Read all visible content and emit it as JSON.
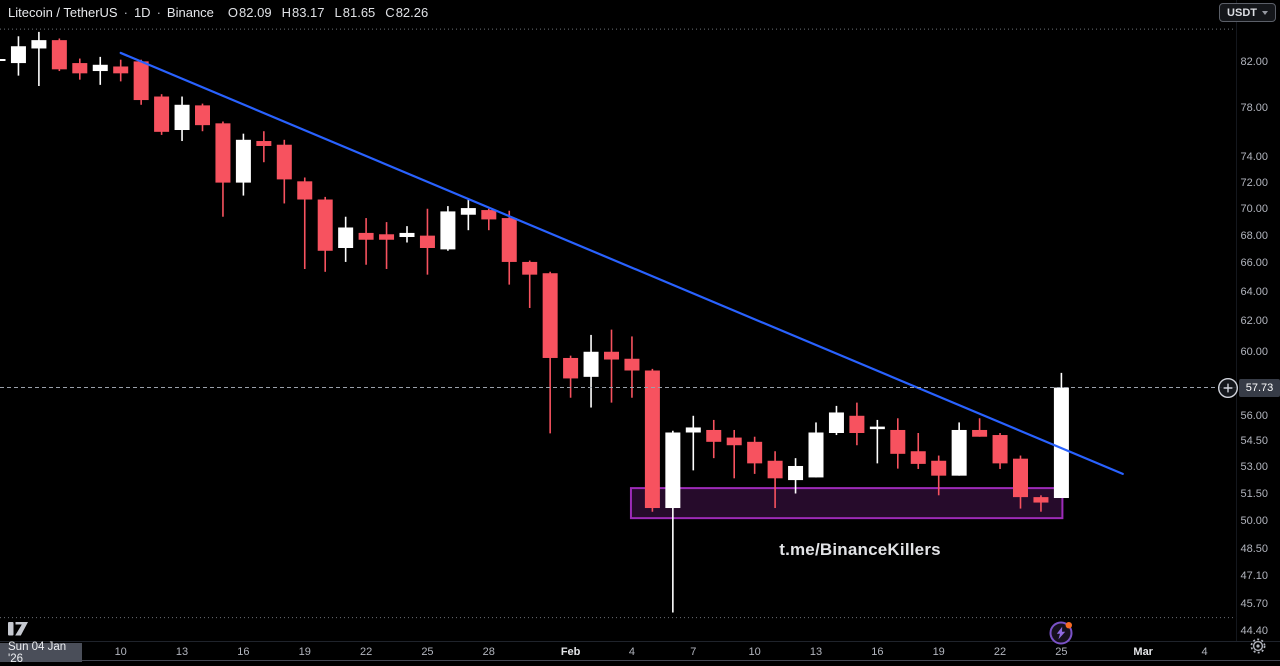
{
  "header": {
    "symbol": "Litecoin / TetherUS",
    "sep": "·",
    "interval": "1D",
    "exchange": "Binance",
    "ohlc": [
      {
        "label": "O",
        "value": "82.09"
      },
      {
        "label": "H",
        "value": "83.17"
      },
      {
        "label": "L",
        "value": "81.65"
      },
      {
        "label": "C",
        "value": "82.26"
      }
    ]
  },
  "currency_button": {
    "label": "USDT"
  },
  "price_axis": {
    "current": {
      "label": "57.73",
      "value": 57.73
    },
    "ticks": [
      {
        "label": "82.00",
        "value": 82.0
      },
      {
        "label": "78.00",
        "value": 78.0
      },
      {
        "label": "74.00",
        "value": 74.0
      },
      {
        "label": "72.00",
        "value": 72.0
      },
      {
        "label": "70.00",
        "value": 70.0
      },
      {
        "label": "68.00",
        "value": 68.0
      },
      {
        "label": "66.00",
        "value": 66.0
      },
      {
        "label": "64.00",
        "value": 64.0
      },
      {
        "label": "62.00",
        "value": 62.0
      },
      {
        "label": "60.00",
        "value": 60.0
      },
      {
        "label": "56.00",
        "value": 56.0
      },
      {
        "label": "54.50",
        "value": 54.5
      },
      {
        "label": "53.00",
        "value": 53.0
      },
      {
        "label": "51.50",
        "value": 51.5
      },
      {
        "label": "50.00",
        "value": 50.0
      },
      {
        "label": "48.50",
        "value": 48.5
      },
      {
        "label": "47.10",
        "value": 47.1
      },
      {
        "label": "45.70",
        "value": 45.7
      },
      {
        "label": "44.40",
        "value": 44.4
      }
    ]
  },
  "time_axis": {
    "date_badge": "Sun 04 Jan '26",
    "ticks": [
      {
        "label": "10",
        "day_index": 6,
        "bold": false
      },
      {
        "label": "13",
        "day_index": 9,
        "bold": false
      },
      {
        "label": "16",
        "day_index": 12,
        "bold": false
      },
      {
        "label": "19",
        "day_index": 15,
        "bold": false
      },
      {
        "label": "22",
        "day_index": 18,
        "bold": false
      },
      {
        "label": "25",
        "day_index": 21,
        "bold": false
      },
      {
        "label": "28",
        "day_index": 24,
        "bold": false
      },
      {
        "label": "Feb",
        "day_index": 28,
        "bold": true
      },
      {
        "label": "4",
        "day_index": 31,
        "bold": false
      },
      {
        "label": "7",
        "day_index": 34,
        "bold": false
      },
      {
        "label": "10",
        "day_index": 37,
        "bold": false
      },
      {
        "label": "13",
        "day_index": 40,
        "bold": false
      },
      {
        "label": "16",
        "day_index": 43,
        "bold": false
      },
      {
        "label": "19",
        "day_index": 46,
        "bold": false
      },
      {
        "label": "22",
        "day_index": 49,
        "bold": false
      },
      {
        "label": "25",
        "day_index": 52,
        "bold": false
      },
      {
        "label": "Mar",
        "day_index": 56,
        "bold": true
      },
      {
        "label": "4",
        "day_index": 59,
        "bold": false
      }
    ]
  },
  "colors": {
    "background": "#000000",
    "candle_up": "#ffffff",
    "candle_down": "#f7525f",
    "trendline": "#2962ff",
    "zone_border": "#9d2bb8",
    "zone_fill": "rgba(138,40,156,0.28)",
    "axis_text": "#b2b5be",
    "price_line": "#9aa0aa",
    "badge_bg": "#373c47",
    "flash_purple": "#8f6ae0",
    "notification_orange": "#f76a24"
  },
  "chart_data": {
    "type": "candlestick",
    "title": "Litecoin / TetherUS · 1D · Binance",
    "price_scale": "log",
    "current_price": 57.73,
    "dotted_guides_prices": [
      84.95,
      45.05
    ],
    "drawings": {
      "watermark_text": "t.me/BinanceKillers",
      "trendline": {
        "shape": "trend-line",
        "start": {
          "day_index": 6,
          "price": 82.8
        },
        "end": {
          "day_index": 55,
          "price": 52.6
        }
      },
      "support_zone": {
        "shape": "rectangle",
        "from_day_index": 31,
        "to_day_index": 52,
        "top_price": 51.8,
        "bottom_price": 50.15
      }
    },
    "candles": [
      {
        "date": "Jan 4",
        "o": 82.09,
        "h": 83.17,
        "l": 81.65,
        "c": 82.26
      },
      {
        "date": "Jan 5",
        "o": 81.9,
        "h": 84.3,
        "l": 80.8,
        "c": 83.4
      },
      {
        "date": "Jan 6",
        "o": 83.2,
        "h": 84.7,
        "l": 79.9,
        "c": 83.95
      },
      {
        "date": "Jan 7",
        "o": 83.95,
        "h": 84.1,
        "l": 81.2,
        "c": 81.35
      },
      {
        "date": "Jan 8",
        "o": 81.9,
        "h": 82.3,
        "l": 80.45,
        "c": 81.0
      },
      {
        "date": "Jan 9",
        "o": 81.2,
        "h": 82.45,
        "l": 80.0,
        "c": 81.75
      },
      {
        "date": "Jan 10",
        "o": 81.6,
        "h": 82.2,
        "l": 80.3,
        "c": 81.0
      },
      {
        "date": "Jan 11",
        "o": 82.05,
        "h": 82.2,
        "l": 78.3,
        "c": 78.7
      },
      {
        "date": "Jan 12",
        "o": 79.0,
        "h": 79.2,
        "l": 75.8,
        "c": 76.05
      },
      {
        "date": "Jan 13",
        "o": 76.2,
        "h": 79.0,
        "l": 75.3,
        "c": 78.3
      },
      {
        "date": "Jan 14",
        "o": 78.25,
        "h": 78.4,
        "l": 76.1,
        "c": 76.6
      },
      {
        "date": "Jan 15",
        "o": 76.75,
        "h": 76.9,
        "l": 69.4,
        "c": 72.0
      },
      {
        "date": "Jan 16",
        "o": 72.0,
        "h": 75.9,
        "l": 71.0,
        "c": 75.4
      },
      {
        "date": "Jan 17",
        "o": 75.3,
        "h": 76.1,
        "l": 73.6,
        "c": 74.9
      },
      {
        "date": "Jan 18",
        "o": 75.0,
        "h": 75.4,
        "l": 70.4,
        "c": 72.25
      },
      {
        "date": "Jan 19",
        "o": 72.1,
        "h": 72.4,
        "l": 65.6,
        "c": 70.7
      },
      {
        "date": "Jan 20",
        "o": 70.7,
        "h": 70.9,
        "l": 65.4,
        "c": 66.9
      },
      {
        "date": "Jan 21",
        "o": 67.1,
        "h": 69.4,
        "l": 66.1,
        "c": 68.6
      },
      {
        "date": "Jan 22",
        "o": 68.2,
        "h": 69.3,
        "l": 65.9,
        "c": 67.7
      },
      {
        "date": "Jan 23",
        "o": 68.1,
        "h": 69.0,
        "l": 65.6,
        "c": 67.7
      },
      {
        "date": "Jan 24",
        "o": 67.9,
        "h": 68.7,
        "l": 67.5,
        "c": 68.2
      },
      {
        "date": "Jan 25",
        "o": 68.0,
        "h": 70.0,
        "l": 65.2,
        "c": 67.1
      },
      {
        "date": "Jan 26",
        "o": 67.0,
        "h": 70.2,
        "l": 66.9,
        "c": 69.8
      },
      {
        "date": "Jan 27",
        "o": 69.55,
        "h": 70.7,
        "l": 68.4,
        "c": 70.05
      },
      {
        "date": "Jan 28",
        "o": 69.9,
        "h": 70.0,
        "l": 68.4,
        "c": 69.2
      },
      {
        "date": "Jan 29",
        "o": 69.3,
        "h": 69.85,
        "l": 64.5,
        "c": 66.1
      },
      {
        "date": "Jan 30",
        "o": 66.1,
        "h": 66.2,
        "l": 62.9,
        "c": 65.2
      },
      {
        "date": "Jan 31",
        "o": 65.3,
        "h": 65.4,
        "l": 54.95,
        "c": 59.6
      },
      {
        "date": "Feb 1",
        "o": 59.6,
        "h": 59.75,
        "l": 57.1,
        "c": 58.3
      },
      {
        "date": "Feb 2",
        "o": 58.4,
        "h": 61.1,
        "l": 56.5,
        "c": 60.0
      },
      {
        "date": "Feb 3",
        "o": 60.0,
        "h": 61.45,
        "l": 56.8,
        "c": 59.5
      },
      {
        "date": "Feb 4",
        "o": 59.55,
        "h": 61.0,
        "l": 57.1,
        "c": 58.8
      },
      {
        "date": "Feb 5",
        "o": 58.8,
        "h": 58.9,
        "l": 50.5,
        "c": 50.7
      },
      {
        "date": "Feb 6",
        "o": 50.7,
        "h": 55.1,
        "l": 45.3,
        "c": 55.0
      },
      {
        "date": "Feb 7",
        "o": 55.0,
        "h": 56.0,
        "l": 52.8,
        "c": 55.3
      },
      {
        "date": "Feb 8",
        "o": 55.15,
        "h": 55.75,
        "l": 53.5,
        "c": 54.45
      },
      {
        "date": "Feb 9",
        "o": 54.7,
        "h": 55.15,
        "l": 52.35,
        "c": 54.25
      },
      {
        "date": "Feb 10",
        "o": 54.45,
        "h": 54.75,
        "l": 52.6,
        "c": 53.2
      },
      {
        "date": "Feb 11",
        "o": 53.35,
        "h": 53.9,
        "l": 50.7,
        "c": 52.35
      },
      {
        "date": "Feb 12",
        "o": 52.25,
        "h": 53.5,
        "l": 51.5,
        "c": 53.05
      },
      {
        "date": "Feb 13",
        "o": 52.4,
        "h": 55.6,
        "l": 52.4,
        "c": 55.0
      },
      {
        "date": "Feb 14",
        "o": 54.97,
        "h": 56.6,
        "l": 54.85,
        "c": 56.2
      },
      {
        "date": "Feb 15",
        "o": 56.0,
        "h": 56.8,
        "l": 54.25,
        "c": 54.97
      },
      {
        "date": "Feb 16",
        "o": 55.2,
        "h": 55.75,
        "l": 53.2,
        "c": 55.35
      },
      {
        "date": "Feb 17",
        "o": 55.15,
        "h": 55.85,
        "l": 52.9,
        "c": 53.75
      },
      {
        "date": "Feb 18",
        "o": 53.9,
        "h": 54.97,
        "l": 52.88,
        "c": 53.17
      },
      {
        "date": "Feb 19",
        "o": 53.35,
        "h": 53.65,
        "l": 51.4,
        "c": 52.5
      },
      {
        "date": "Feb 20",
        "o": 52.5,
        "h": 55.6,
        "l": 52.5,
        "c": 55.15
      },
      {
        "date": "Feb 21",
        "o": 55.15,
        "h": 55.85,
        "l": 54.75,
        "c": 54.75
      },
      {
        "date": "Feb 22",
        "o": 54.85,
        "h": 54.97,
        "l": 52.88,
        "c": 53.2
      },
      {
        "date": "Feb 23",
        "o": 53.47,
        "h": 53.65,
        "l": 50.67,
        "c": 51.3
      },
      {
        "date": "Feb 24",
        "o": 51.3,
        "h": 51.4,
        "l": 50.5,
        "c": 51.0
      },
      {
        "date": "Feb 25",
        "o": 51.25,
        "h": 58.65,
        "l": 51.25,
        "c": 57.73
      }
    ]
  }
}
